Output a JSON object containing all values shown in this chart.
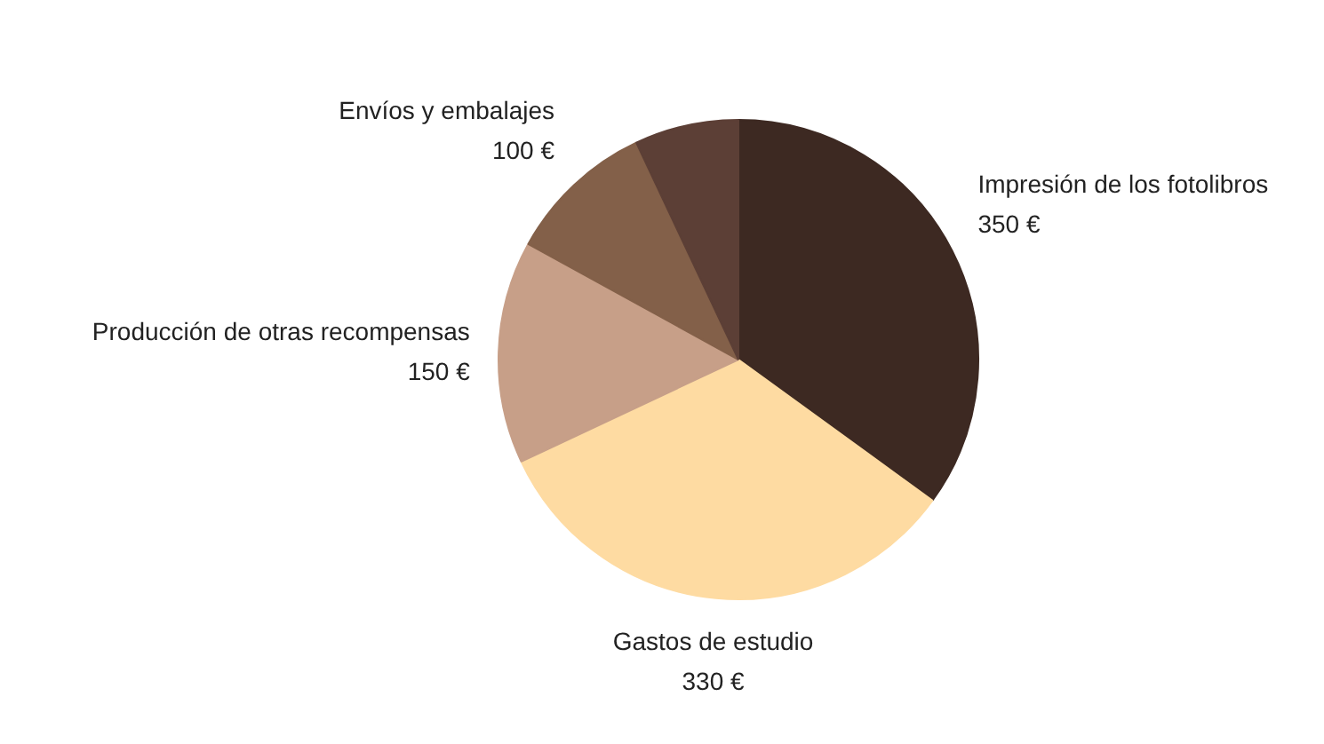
{
  "chart_data": {
    "type": "pie",
    "categories": [
      "Impresión de los fotolibros",
      "Gastos de estudio",
      "Producción de otras recompensas",
      "Envíos y embalajes",
      null
    ],
    "values": [
      350,
      330,
      150,
      100,
      70
    ],
    "value_labels": [
      "350 €",
      "330 €",
      "150 €",
      "100 €",
      null
    ],
    "colors": [
      "#3d2922",
      "#fedba2",
      "#c79f88",
      "#836049",
      "#5c3f36"
    ]
  }
}
